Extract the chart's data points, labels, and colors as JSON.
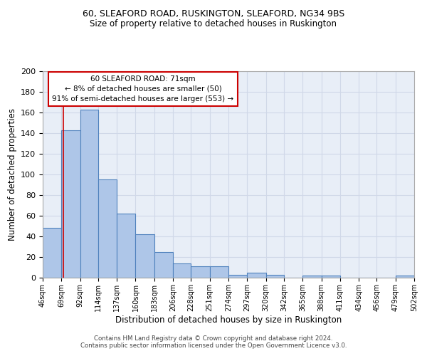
{
  "title1": "60, SLEAFORD ROAD, RUSKINGTON, SLEAFORD, NG34 9BS",
  "title2": "Size of property relative to detached houses in Ruskington",
  "xlabel": "Distribution of detached houses by size in Ruskington",
  "ylabel": "Number of detached properties",
  "bar_values": [
    48,
    143,
    163,
    95,
    62,
    42,
    25,
    14,
    11,
    11,
    3,
    5,
    3,
    0,
    2,
    2,
    0,
    0,
    0,
    2
  ],
  "bin_edges": [
    46,
    69,
    92,
    114,
    137,
    160,
    183,
    206,
    228,
    251,
    274,
    297,
    320,
    342,
    365,
    388,
    411,
    434,
    456,
    479,
    502
  ],
  "tick_labels": [
    "46sqm",
    "69sqm",
    "92sqm",
    "114sqm",
    "137sqm",
    "160sqm",
    "183sqm",
    "206sqm",
    "228sqm",
    "251sqm",
    "274sqm",
    "297sqm",
    "320sqm",
    "342sqm",
    "365sqm",
    "388sqm",
    "411sqm",
    "434sqm",
    "456sqm",
    "479sqm",
    "502sqm"
  ],
  "bar_facecolor": "#aec6e8",
  "bar_edgecolor": "#4f81bd",
  "grid_color": "#d0d8e8",
  "bg_color": "#e8eef7",
  "property_size": 71,
  "vline_color": "#cc0000",
  "annotation_text": "60 SLEAFORD ROAD: 71sqm\n← 8% of detached houses are smaller (50)\n91% of semi-detached houses are larger (553) →",
  "annotation_box_color": "#cc0000",
  "ylim": [
    0,
    200
  ],
  "yticks": [
    0,
    20,
    40,
    60,
    80,
    100,
    120,
    140,
    160,
    180,
    200
  ],
  "footer": "Contains HM Land Registry data © Crown copyright and database right 2024.\nContains public sector information licensed under the Open Government Licence v3.0."
}
